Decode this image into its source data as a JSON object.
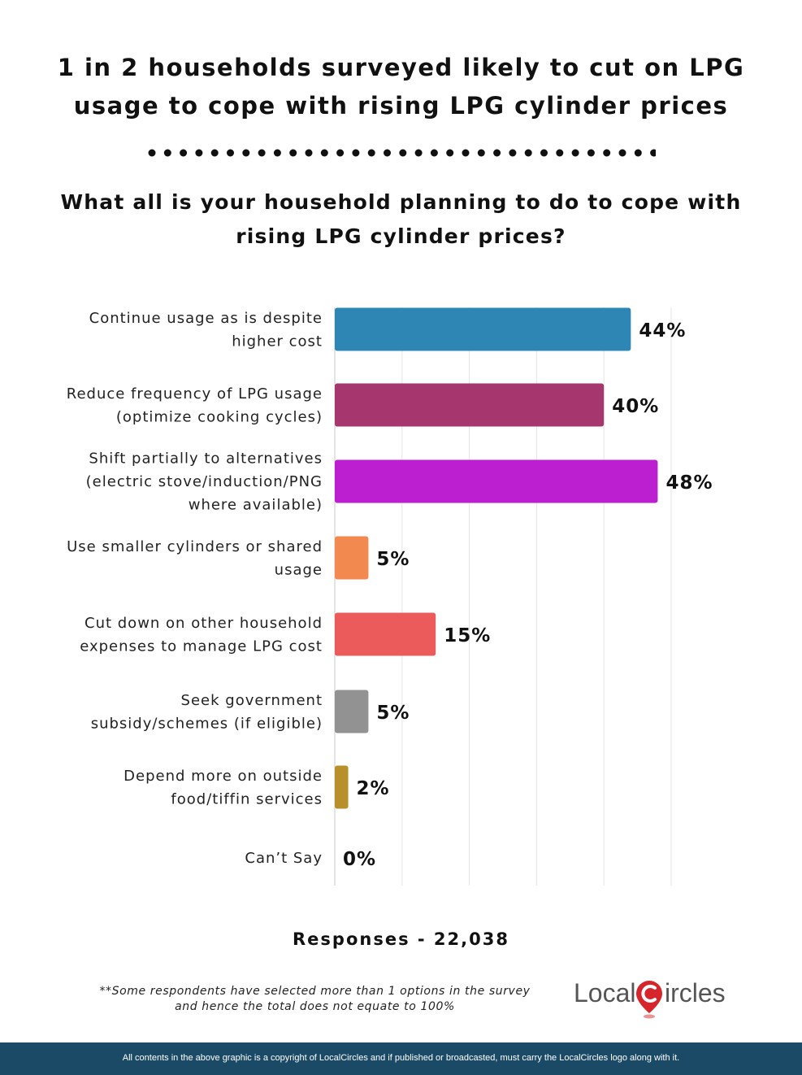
{
  "headline": {
    "line1": "1 in 2 households surveyed likely to cut on LPG",
    "line2": "usage to cope with rising LPG cylinder prices"
  },
  "question": {
    "line1": "What all is your household planning to do to cope with",
    "line2": "rising LPG cylinder prices?"
  },
  "chart_data": {
    "type": "bar",
    "orientation": "horizontal",
    "categories": [
      [
        "Continue usage as is despite",
        "higher cost"
      ],
      [
        "Reduce frequency of LPG usage",
        "(optimize cooking cycles)"
      ],
      [
        "Shift partially to alternatives",
        "(electric stove/induction/PNG",
        "where available)"
      ],
      [
        "Use smaller cylinders or shared",
        "usage"
      ],
      [
        "Cut down on other household",
        "expenses to manage LPG cost"
      ],
      [
        "Seek government",
        "subsidy/schemes (if eligible)"
      ],
      [
        "Depend more on outside",
        "food/tiffin services"
      ],
      [
        "Can’t Say"
      ]
    ],
    "values": [
      44,
      40,
      48,
      5,
      15,
      5,
      2,
      0
    ],
    "value_labels": [
      "44%",
      "40%",
      "48%",
      "5%",
      "15%",
      "5%",
      "2%",
      "0%"
    ],
    "colors": [
      "#2e86b4",
      "#a5376e",
      "#bb1fd0",
      "#f28a50",
      "#eb5b5b",
      "#929292",
      "#b8902a",
      "#cccccc"
    ],
    "xlim": [
      0,
      50
    ],
    "grid": "vertical",
    "gridline_values": [
      0,
      10,
      20,
      30,
      40,
      50
    ]
  },
  "responses": "Responses - 22,038",
  "footnote": {
    "line1": "**Some respondents have selected more than 1 options in the survey",
    "line2": "and hence the total does not equate to 100%"
  },
  "logo": {
    "text_left": "Local",
    "text_right": "ircles",
    "icon": "location-pin-c-icon",
    "colors": {
      "text": "#555555",
      "accent": "#d7262b"
    }
  },
  "copyright": "All contents in the above graphic is a copyright of LocalCircles and if published or broadcasted, must carry the LocalCircles logo along with it."
}
